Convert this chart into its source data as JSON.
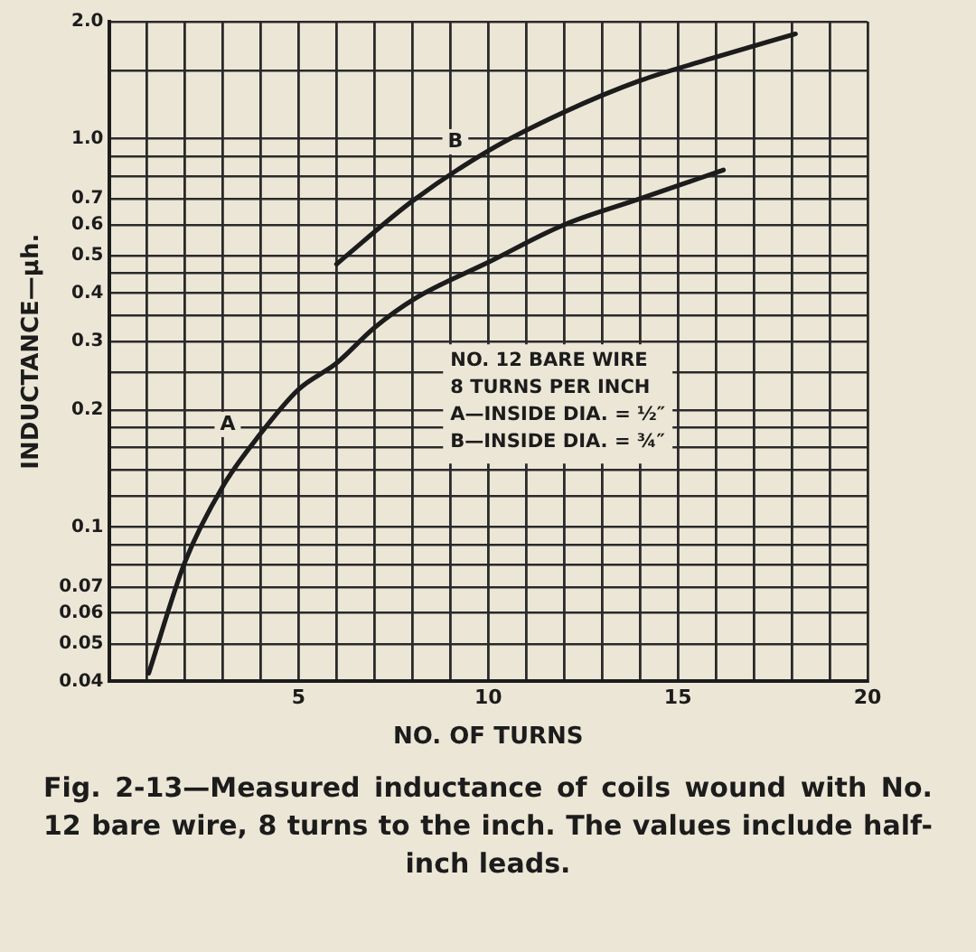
{
  "chart_data": {
    "type": "line",
    "xlabel": "NO. OF TURNS",
    "ylabel": "INDUCTANCE—μh.",
    "log": "y",
    "grid": true,
    "legend": false,
    "marker": "none",
    "line_style": "solid",
    "xlim": [
      0,
      20
    ],
    "xticks": [
      {
        "value": 0,
        "label": null
      },
      {
        "value": 1,
        "label": null
      },
      {
        "value": 2,
        "label": null
      },
      {
        "value": 3,
        "label": null
      },
      {
        "value": 4,
        "label": null
      },
      5,
      {
        "value": 6,
        "label": null
      },
      {
        "value": 7,
        "label": null
      },
      {
        "value": 8,
        "label": null
      },
      {
        "value": 9,
        "label": null
      },
      10,
      {
        "value": 11,
        "label": null
      },
      {
        "value": 12,
        "label": null
      },
      {
        "value": 13,
        "label": null
      },
      {
        "value": 14,
        "label": null
      },
      15,
      {
        "value": 16,
        "label": null
      },
      {
        "value": 17,
        "label": null
      },
      {
        "value": 18,
        "label": null
      },
      {
        "value": 19,
        "label": null
      },
      20
    ],
    "ylim": [
      0.04,
      2.0
    ],
    "yticks": [
      0.04,
      0.05,
      0.06,
      0.07,
      {
        "value": 0.08,
        "label": null
      },
      {
        "value": 0.09,
        "label": null
      },
      0.1,
      {
        "value": 0.12,
        "label": null
      },
      {
        "value": 0.14,
        "label": null
      },
      {
        "value": 0.16,
        "label": null
      },
      {
        "value": 0.18,
        "label": null
      },
      0.2,
      {
        "value": 0.25,
        "label": null
      },
      0.3,
      {
        "value": 0.35,
        "label": null
      },
      0.4,
      {
        "value": 0.45,
        "label": null
      },
      0.5,
      0.6,
      0.7,
      {
        "value": 0.8,
        "label": null
      },
      {
        "value": 0.9,
        "label": null
      },
      {
        "value": 1.0,
        "label": "1.0"
      },
      {
        "value": 1.5,
        "label": null
      },
      {
        "value": 2.0,
        "label": "2.0"
      }
    ],
    "series": [
      {
        "name": "A",
        "color": "#1c1c1c",
        "x": [
          1.05,
          2,
          3,
          4,
          5,
          6,
          7,
          8.1,
          10,
          12,
          14,
          16.2
        ],
        "values": [
          0.042,
          0.081,
          0.127,
          0.174,
          0.226,
          0.264,
          0.326,
          0.389,
          0.48,
          0.6,
          0.7,
          0.83
        ]
      },
      {
        "name": "B",
        "color": "#1c1c1c",
        "x": [
          6,
          8,
          10,
          12,
          14,
          16,
          18.1
        ],
        "values": [
          0.475,
          0.69,
          0.93,
          1.17,
          1.41,
          1.62,
          1.86
        ]
      }
    ],
    "annotations": [
      "NO. 12 BARE WIRE\n8 TURNS PER INCH\nA—INSIDE DIA. = ½″\nB—INSIDE DIA. = ¾″",
      "Fig. 2-13—Measured inductance of coils wound with No. 12 bare wire, 8 turns to the inch. The values include half-inch leads."
    ]
  }
}
